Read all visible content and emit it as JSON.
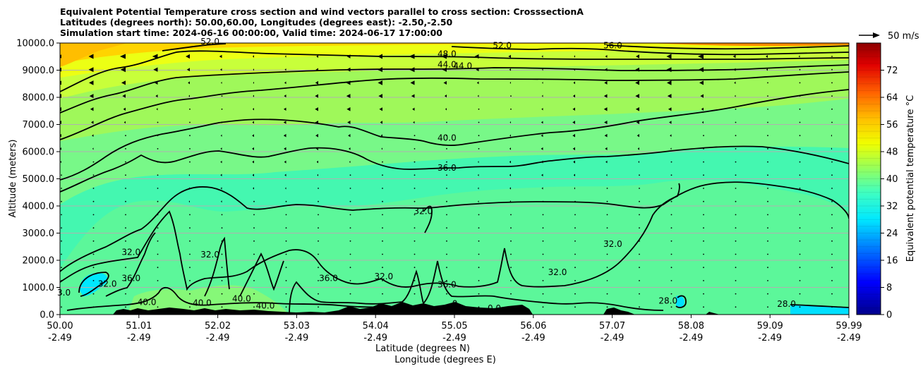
{
  "header": {
    "title_line1": "Equivalent Potential Temperature cross section and wind vectors parallel to cross section: CrosssectionA",
    "title_line2": "Latitudes (degrees north): 50.00,60.00, Longitudes (degrees east): -2.50,-2.50",
    "title_line3": "Simulation start time: 2024-06-16 00:00:00, Valid time: 2024-06-17 17:00:00"
  },
  "chart_data": {
    "type": "heatmap",
    "title": "Equivalent Potential Temperature cross section and wind vectors parallel to cross section: CrosssectionA",
    "xlabel": "Latitude (degrees N)",
    "xlabel2": "Longitude (degrees E)",
    "ylabel": "Altitude (meters)",
    "ylim": [
      0,
      10000
    ],
    "xlim": [
      50.0,
      59.99
    ],
    "y_ticks": [
      "0.0",
      "1000.0",
      "2000.0",
      "3000.0",
      "4000.0",
      "5000.0",
      "6000.0",
      "7000.0",
      "8000.0",
      "9000.0",
      "10000.0"
    ],
    "x_ticks_lat": [
      "50.00",
      "51.01",
      "52.02",
      "53.03",
      "54.04",
      "55.05",
      "56.06",
      "57.07",
      "58.08",
      "59.09",
      "59.99"
    ],
    "x_ticks_lon": [
      "-2.49",
      "-2.49",
      "-2.49",
      "-2.49",
      "-2.49",
      "-2.49",
      "-2.49",
      "-2.49",
      "-2.49",
      "-2.49",
      "-2.49"
    ],
    "grid": true,
    "colorbar": {
      "label": "Equivalent potential temperature °C",
      "ticks": [
        "0",
        "8",
        "16",
        "24",
        "32",
        "40",
        "48",
        "56",
        "64",
        "72"
      ],
      "range": [
        0,
        80
      ]
    },
    "wind_key": {
      "label": "50 m/s"
    },
    "contour_labels": [
      {
        "text": "52.0",
        "x": 51.9,
        "y": 9950
      },
      {
        "text": "48.0",
        "x": 54.9,
        "y": 9500
      },
      {
        "text": "52.0",
        "x": 55.6,
        "y": 9800
      },
      {
        "text": "56.0",
        "x": 57.0,
        "y": 9800
      },
      {
        "text": "44.0",
        "x": 54.9,
        "y": 9100
      },
      {
        "text": "44.0",
        "x": 55.1,
        "y": 9050
      },
      {
        "text": "40.0",
        "x": 54.9,
        "y": 6400
      },
      {
        "text": "36.0",
        "x": 54.9,
        "y": 5300
      },
      {
        "text": "32.0",
        "x": 54.6,
        "y": 3700
      },
      {
        "text": "32.0",
        "x": 57.0,
        "y": 2500
      },
      {
        "text": "32.0",
        "x": 56.3,
        "y": 1450
      },
      {
        "text": "32.0",
        "x": 51.9,
        "y": 2100
      },
      {
        "text": "32.0",
        "x": 50.9,
        "y": 2200
      },
      {
        "text": "36.0",
        "x": 53.4,
        "y": 1240
      },
      {
        "text": "36.0",
        "x": 54.9,
        "y": 1000
      },
      {
        "text": "32.0",
        "x": 54.1,
        "y": 1300
      },
      {
        "text": "32.0",
        "x": 50.6,
        "y": 1030
      },
      {
        "text": "36.0",
        "x": 50.9,
        "y": 1230
      },
      {
        "text": "28.0",
        "x": 57.7,
        "y": 400
      },
      {
        "text": "28.0",
        "x": 59.2,
        "y": 280
      },
      {
        "text": "40.0",
        "x": 51.1,
        "y": 350
      },
      {
        "text": "40.0",
        "x": 51.8,
        "y": 320
      },
      {
        "text": "40.0",
        "x": 52.3,
        "y": 480
      },
      {
        "text": "40.0",
        "x": 52.6,
        "y": 220
      },
      {
        "text": "3.0",
        "x": 50.05,
        "y": 700
      },
      {
        "text": "0",
        "x": 55.0,
        "y": 300
      },
      {
        "text": "0.0",
        "x": 55.5,
        "y": 130
      }
    ]
  }
}
